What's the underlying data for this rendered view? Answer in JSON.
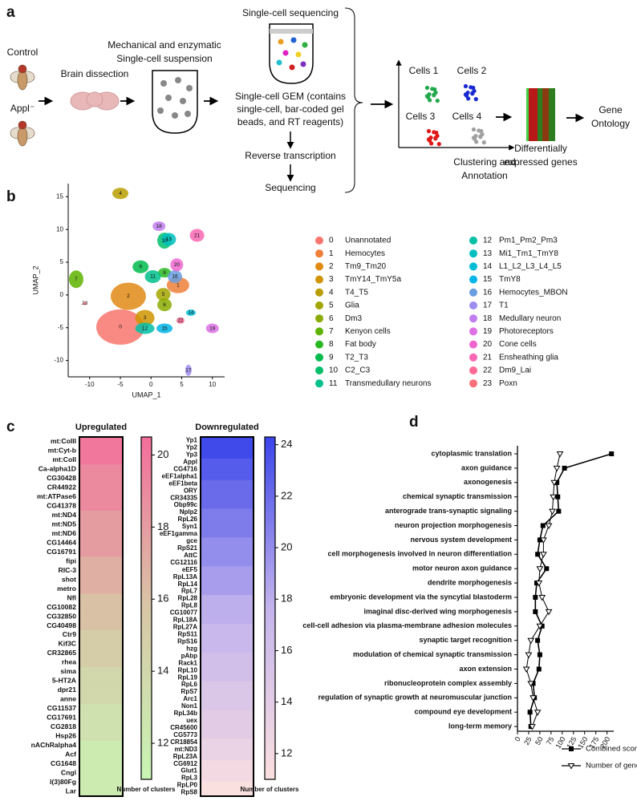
{
  "panel_labels": [
    "a",
    "b",
    "c",
    "d"
  ],
  "diagram": {
    "conditions": [
      "Control",
      "Appl⁻"
    ],
    "dissection": "Brain dissection",
    "suspension": [
      "Mechanical and enzymatic",
      "Single-cell suspension"
    ],
    "sequencing_title": "Single-cell sequencing",
    "gem": [
      "Single-cell GEM (contains",
      "single-cell, bar-coded gel",
      "beads, and RT reagents)"
    ],
    "reverse": "Reverse transcription",
    "sequencing": "Sequencing",
    "cells": [
      "Cells 1",
      "Cells 2",
      "Cells 3",
      "Cells 4"
    ],
    "clustering": [
      "Clustering and",
      "Annotation"
    ],
    "deg": [
      "Differentially",
      "expressed genes"
    ],
    "go": [
      "Gene",
      "Ontology"
    ]
  },
  "chart_data": [
    {
      "type": "scatter",
      "xlabel": "UMAP_1",
      "ylabel": "UMAP_2",
      "xlim": [
        -13.5,
        12
      ],
      "ylim": [
        -12.5,
        17
      ],
      "xticks": [
        -10,
        -5,
        0,
        5,
        10
      ],
      "yticks": [
        -10,
        -5,
        0,
        5,
        10,
        15
      ],
      "clusters": [
        {
          "id": "0",
          "name": "Unannotated",
          "color": "#f8766d",
          "x": -5,
          "y": -4.9
        },
        {
          "id": "1",
          "name": "Hemocytes",
          "color": "#ef7f3a",
          "x": 4.4,
          "y": 1.5
        },
        {
          "id": "2",
          "name": "Tm9_Tm20",
          "color": "#e08a14",
          "x": -3.7,
          "y": -0.2
        },
        {
          "id": "3",
          "name": "TmY14_TmY5a",
          "color": "#cf9400",
          "x": -1,
          "y": -3.5
        },
        {
          "id": "4",
          "name": "T4_T5",
          "color": "#b89d00",
          "x": -5,
          "y": 15.5
        },
        {
          "id": "5",
          "name": "Glia",
          "color": "#a3a500",
          "x": 2,
          "y": 0.1
        },
        {
          "id": "6",
          "name": "Dm3",
          "color": "#8bab00",
          "x": 2.2,
          "y": -1.5
        },
        {
          "id": "7",
          "name": "Kenyon cells",
          "color": "#5eb300",
          "x": -12.2,
          "y": 2.4
        },
        {
          "id": "8",
          "name": "Fat body",
          "color": "#2ab822",
          "x": 2.2,
          "y": 3.4
        },
        {
          "id": "9",
          "name": "T2_T3",
          "color": "#00bb4c",
          "x": -1.7,
          "y": 4.3
        },
        {
          "id": "10",
          "name": "C2_C3",
          "color": "#00be6c",
          "x": 2.2,
          "y": 8.3
        },
        {
          "id": "11",
          "name": "Transmedullary neurons",
          "color": "#00c08b",
          "x": 0.3,
          "y": 2.8
        },
        {
          "id": "12",
          "name": "Pm1_Pm2_Pm3",
          "color": "#00c0a6",
          "x": -1,
          "y": -5.1
        },
        {
          "id": "13",
          "name": "Mi1_Tm1_TmY8",
          "color": "#00bfbe",
          "x": 2.9,
          "y": 8.5
        },
        {
          "id": "14",
          "name": "L1_L2_L3_L4_L5",
          "color": "#00bcd4",
          "x": 6.5,
          "y": -2.7
        },
        {
          "id": "15",
          "name": "TmY8",
          "color": "#00b5e8",
          "x": 2.2,
          "y": -5.1
        },
        {
          "id": "16",
          "name": "Hemocytes_MBON",
          "color": "#6a9ee0",
          "x": 3.9,
          "y": 2.8
        },
        {
          "id": "17",
          "name": "T1",
          "color": "#9f8cf0",
          "x": 6.1,
          "y": -11.5
        },
        {
          "id": "18",
          "name": "Medullary neuron",
          "color": "#c27ef0",
          "x": 1.3,
          "y": 10.5
        },
        {
          "id": "19",
          "name": "Photoreceptors",
          "color": "#dc71e4",
          "x": 10,
          "y": -5.1
        },
        {
          "id": "20",
          "name": "Cone cells",
          "color": "#ee67cf",
          "x": 4.2,
          "y": 4.6
        },
        {
          "id": "21",
          "name": "Ensheathing glia",
          "color": "#f966b3",
          "x": 7.5,
          "y": 9.1
        },
        {
          "id": "22",
          "name": "Dm9_Lai",
          "color": "#fd6b95",
          "x": 4.8,
          "y": -3.9
        },
        {
          "id": "23",
          "name": "Poxn",
          "color": "#f87079",
          "x": -10.8,
          "y": -1.3
        }
      ]
    },
    {
      "type": "heatmap",
      "title": "Upregulated",
      "colorbar_label": "Number of clusters",
      "categories": [
        "mt:CoIII",
        "mt:Cyt-b",
        "mt:CoII",
        "Ca-alpha1D",
        "CG30428",
        "CR44922",
        "mt:ATPase6",
        "CG41378",
        "mt:ND4",
        "mt:ND5",
        "mt:ND6",
        "CG14464",
        "CG16791",
        "fipi",
        "RIC-3",
        "shot",
        "metro",
        "Nfl",
        "CG10082",
        "CG32850",
        "CG40498",
        "Ctr9",
        "Kif3C",
        "CR32865",
        "rhea",
        "sima",
        "5-HT2A",
        "dpr21",
        "anne",
        "CG11537",
        "CG17691",
        "CG2818",
        "Hsp26",
        "nAChRalpha4",
        "Acf",
        "CG1648",
        "Cngl",
        "l(3)80Fg",
        "Lar"
      ],
      "values": [
        20,
        20,
        20,
        19,
        19,
        19,
        19,
        19,
        18,
        18,
        18,
        18,
        18,
        17,
        17,
        17,
        17,
        16,
        16,
        16,
        16,
        15,
        15,
        15,
        15,
        14,
        14,
        14,
        14,
        13,
        13,
        13,
        13,
        12,
        12,
        12,
        12,
        12,
        12
      ],
      "colors": [
        "#c8f5b4",
        "#d8c6a6",
        "#f46e9c"
      ],
      "clim": [
        11,
        20.5
      ],
      "cticks": [
        12,
        14,
        16,
        18,
        20
      ]
    },
    {
      "type": "heatmap",
      "title": "Downregulated",
      "colorbar_label": "Number of clusters",
      "categories": [
        "Yp1",
        "Yp2",
        "Yp3",
        "Appl",
        "CG4716",
        "eEF1alpha1",
        "eEF1beta",
        "ORY",
        "CR34335",
        "Obp99c",
        "Nplp2",
        "RpL26",
        "Syn1",
        "eEF1gamma",
        "gce",
        "RpS21",
        "AttC",
        "CG12116",
        "eEF5",
        "RpL13A",
        "RpL14",
        "RpL7",
        "RpL28",
        "RpL8",
        "CG10077",
        "RpL18A",
        "RpL27A",
        "RpS11",
        "RpS16",
        "hzg",
        "pAbp",
        "Rack1",
        "RpL10",
        "RpL19",
        "RpL6",
        "RpS7",
        "Arc1",
        "Non1",
        "RpL34b",
        "uex",
        "CR45600",
        "CG5773",
        "CR18854",
        "mt:ND3",
        "RpL23A",
        "CG6912",
        "Glut1",
        "RpL3",
        "RpLP0",
        "RpS8"
      ],
      "values": [
        24,
        24,
        24,
        23,
        23,
        23,
        22,
        22,
        22,
        22,
        21,
        21,
        21,
        21,
        20,
        20,
        20,
        20,
        19,
        19,
        19,
        19,
        18,
        18,
        18,
        18,
        17,
        17,
        17,
        17,
        16,
        16,
        16,
        16,
        15,
        15,
        15,
        15,
        14,
        14,
        14,
        14,
        13,
        13,
        13,
        12,
        12,
        12,
        11,
        11
      ],
      "colors": [
        "#fbe0e0",
        "#c4b4ec",
        "#3a45ea"
      ],
      "clim": [
        11,
        24.3
      ],
      "cticks": [
        12,
        14,
        16,
        18,
        20,
        22,
        24
      ]
    },
    {
      "type": "dotline",
      "categories": [
        "cytoplasmic translation",
        "axon guidance",
        "axonogenesis",
        "chemical synaptic transmission",
        "anterograde trans-synaptic signaling",
        "neuron projection morphogenesis",
        "nervous system development",
        "cell morphogenesis involved in neuron differentiation",
        "motor neuron axon guidance",
        "dendrite morphogenesis",
        "embryonic development via the syncytial blastoderm",
        "imaginal disc-derived wing morphogenesis",
        "cell-cell adhesion via plasma-membrane adhesion molecules",
        "synaptic target recognition",
        "modulation of chemical synaptic transmission",
        "axon extension",
        "ribonucleoprotein complex assembly",
        "regulation of synaptic growth at neuromuscular junction",
        "compound eye development",
        "long-term memory"
      ],
      "series": [
        {
          "name": "Combined score",
          "marker": "square",
          "color": "#000000",
          "values": [
            210,
            105,
            88,
            90,
            92,
            57,
            50,
            45,
            65,
            43,
            40,
            40,
            55,
            45,
            50,
            48,
            35,
            38,
            28,
            30
          ]
        },
        {
          "name": "Number of genes",
          "marker": "triangle",
          "color": "#000000",
          "values": [
            95,
            88,
            82,
            80,
            78,
            70,
            58,
            58,
            50,
            48,
            55,
            70,
            50,
            30,
            25,
            20,
            30,
            35,
            45,
            33
          ]
        }
      ],
      "xlim": [
        0,
        215
      ],
      "xticks": [
        0,
        25,
        50,
        75,
        100,
        125,
        150,
        175,
        200
      ]
    }
  ]
}
